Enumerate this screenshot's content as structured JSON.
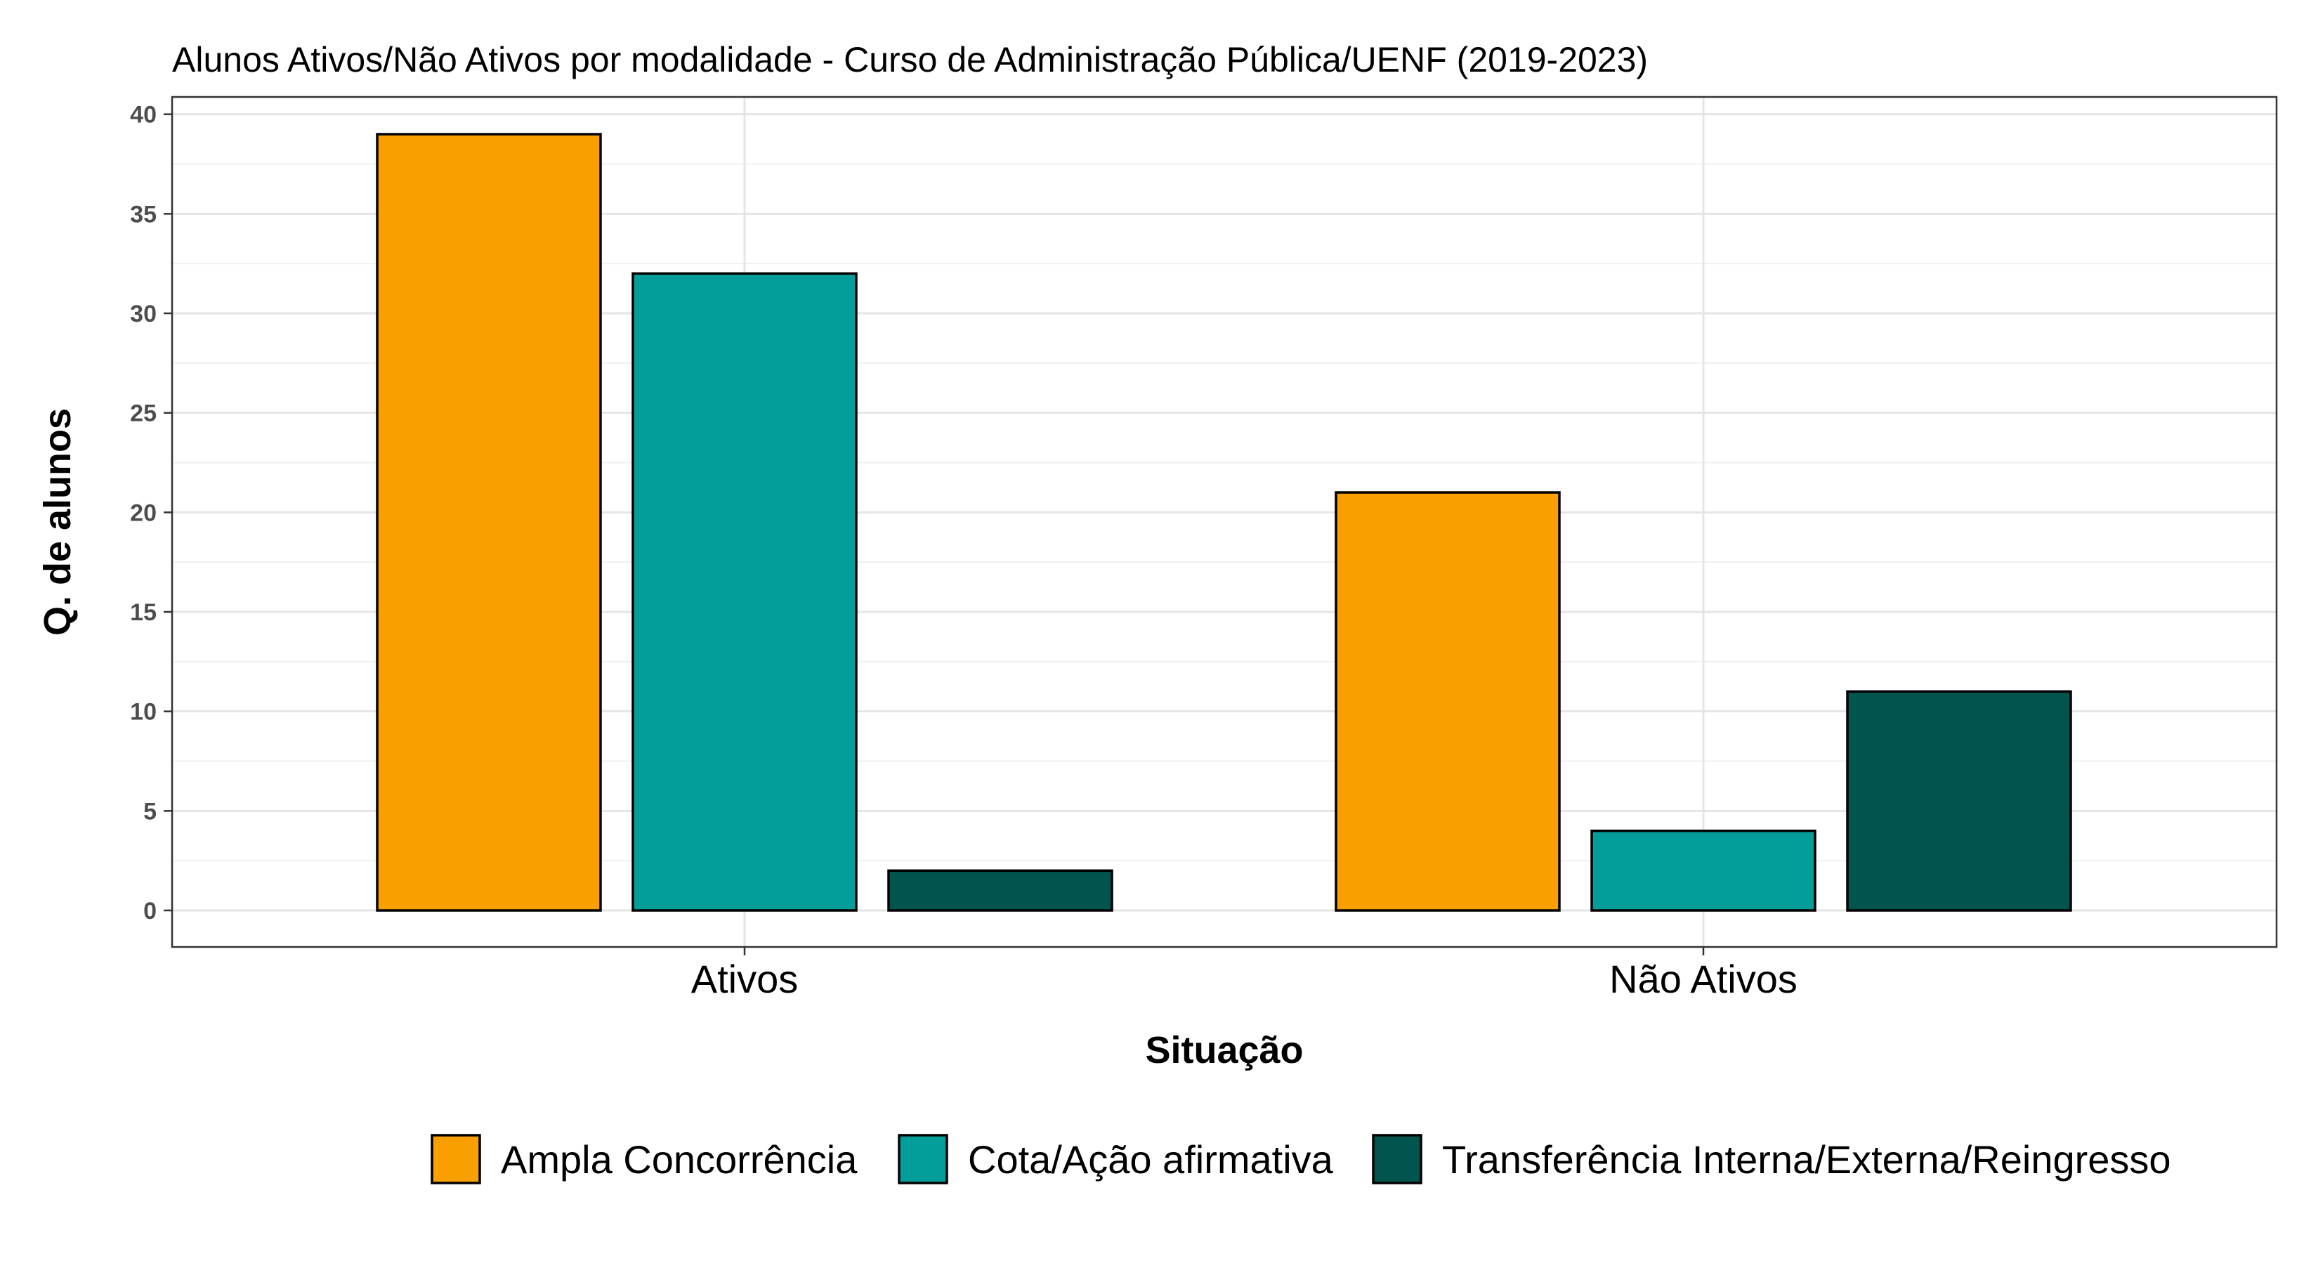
{
  "chart_data": {
    "type": "bar",
    "title": "Alunos Ativos/Não Ativos por modalidade - Curso de Administração Pública/UENF (2019-2023)",
    "xlabel": "Situação",
    "ylabel": "Q. de alunos",
    "categories": [
      "Ativos",
      "Não Ativos"
    ],
    "series": [
      {
        "name": "Ampla Concorrência",
        "color": "#F9A000",
        "values": [
          39,
          21
        ]
      },
      {
        "name": "Cota/Ação afirmativa",
        "color": "#049E9A",
        "values": [
          32,
          4
        ]
      },
      {
        "name": "Transferência Interna/Externa/Reingresso",
        "color": "#02544F",
        "values": [
          2,
          11
        ]
      }
    ],
    "ylim": [
      0,
      40
    ],
    "yticks": [
      0,
      5,
      10,
      15,
      20,
      25,
      30,
      35,
      40
    ],
    "grid": true,
    "legend_position": "bottom"
  }
}
